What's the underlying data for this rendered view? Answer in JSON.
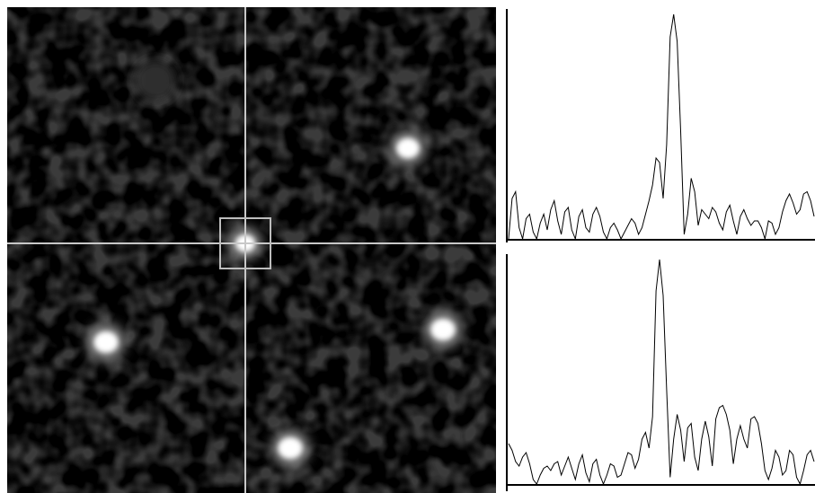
{
  "image_view": {
    "palette": {
      "background": "#000000",
      "crosshair": "#c8c8c8",
      "selection_box": "#bdbdbd",
      "peak": "#ffffff"
    },
    "peak_count": 6
  },
  "profiles": {
    "palette": {
      "line": "#000000",
      "axis": "#000000",
      "background": "#ffffff"
    },
    "horizontal": {
      "values": [
        0.0,
        0.18,
        0.21,
        0.05,
        0.0,
        0.09,
        0.11,
        0.03,
        0.0,
        0.07,
        0.11,
        0.04,
        0.13,
        0.17,
        0.08,
        0.02,
        0.12,
        0.14,
        0.04,
        0.0,
        0.1,
        0.13,
        0.05,
        0.03,
        0.11,
        0.14,
        0.1,
        0.03,
        0.0,
        0.05,
        0.07,
        0.04,
        0.0,
        0.03,
        0.06,
        0.09,
        0.07,
        0.02,
        0.05,
        0.11,
        0.17,
        0.24,
        0.36,
        0.34,
        0.18,
        0.42,
        0.9,
        1.0,
        0.88,
        0.48,
        0.02,
        0.11,
        0.27,
        0.21,
        0.06,
        0.13,
        0.11,
        0.09,
        0.14,
        0.12,
        0.07,
        0.04,
        0.12,
        0.15,
        0.08,
        0.02,
        0.1,
        0.13,
        0.09,
        0.06,
        0.08,
        0.08,
        0.05,
        0.0,
        0.08,
        0.07,
        0.02,
        0.05,
        0.12,
        0.17,
        0.2,
        0.16,
        0.11,
        0.13,
        0.2,
        0.21,
        0.17,
        0.1
      ]
    },
    "vertical": {
      "values": [
        0.18,
        0.15,
        0.1,
        0.08,
        0.12,
        0.14,
        0.09,
        0.02,
        0.0,
        0.04,
        0.07,
        0.08,
        0.06,
        0.09,
        0.1,
        0.04,
        0.08,
        0.12,
        0.07,
        0.02,
        0.09,
        0.13,
        0.05,
        0.01,
        0.09,
        0.11,
        0.04,
        0.0,
        0.04,
        0.09,
        0.08,
        0.03,
        0.04,
        0.09,
        0.14,
        0.13,
        0.07,
        0.11,
        0.2,
        0.23,
        0.16,
        0.3,
        0.86,
        1.0,
        0.84,
        0.42,
        0.03,
        0.2,
        0.31,
        0.24,
        0.1,
        0.25,
        0.27,
        0.12,
        0.06,
        0.2,
        0.28,
        0.21,
        0.08,
        0.29,
        0.34,
        0.35,
        0.31,
        0.24,
        0.09,
        0.2,
        0.26,
        0.2,
        0.16,
        0.29,
        0.3,
        0.27,
        0.18,
        0.06,
        0.02,
        0.07,
        0.15,
        0.12,
        0.04,
        0.06,
        0.15,
        0.13,
        0.03,
        0.0,
        0.06,
        0.13,
        0.15,
        0.1
      ]
    }
  }
}
